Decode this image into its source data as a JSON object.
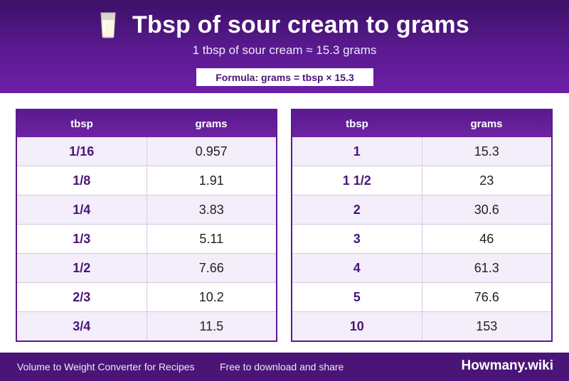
{
  "header": {
    "icon": "glass-of-milk-icon",
    "title": "Tbsp of sour cream to grams",
    "subtitle": "1 tbsp of sour cream ≈ 15.3 grams",
    "formula": "Formula: grams = tbsp × 15.3"
  },
  "tables": [
    {
      "headers": [
        "tbsp",
        "grams"
      ],
      "rows": [
        [
          "1/16",
          "0.957"
        ],
        [
          "1/8",
          "1.91"
        ],
        [
          "1/4",
          "3.83"
        ],
        [
          "1/3",
          "5.11"
        ],
        [
          "1/2",
          "7.66"
        ],
        [
          "2/3",
          "10.2"
        ],
        [
          "3/4",
          "11.5"
        ]
      ]
    },
    {
      "headers": [
        "tbsp",
        "grams"
      ],
      "rows": [
        [
          "1",
          "15.3"
        ],
        [
          "1 1/2",
          "23"
        ],
        [
          "2",
          "30.6"
        ],
        [
          "3",
          "46"
        ],
        [
          "4",
          "61.3"
        ],
        [
          "5",
          "76.6"
        ],
        [
          "10",
          "153"
        ]
      ]
    }
  ],
  "footer": {
    "left": "Volume to Weight Converter for Recipes",
    "middle": "Free to download and share",
    "brand": "Howmany.wiki"
  },
  "colors": {
    "header_bg": "#5b1a91",
    "accent": "#4a1577",
    "row_alt": "#f3eefa"
  }
}
